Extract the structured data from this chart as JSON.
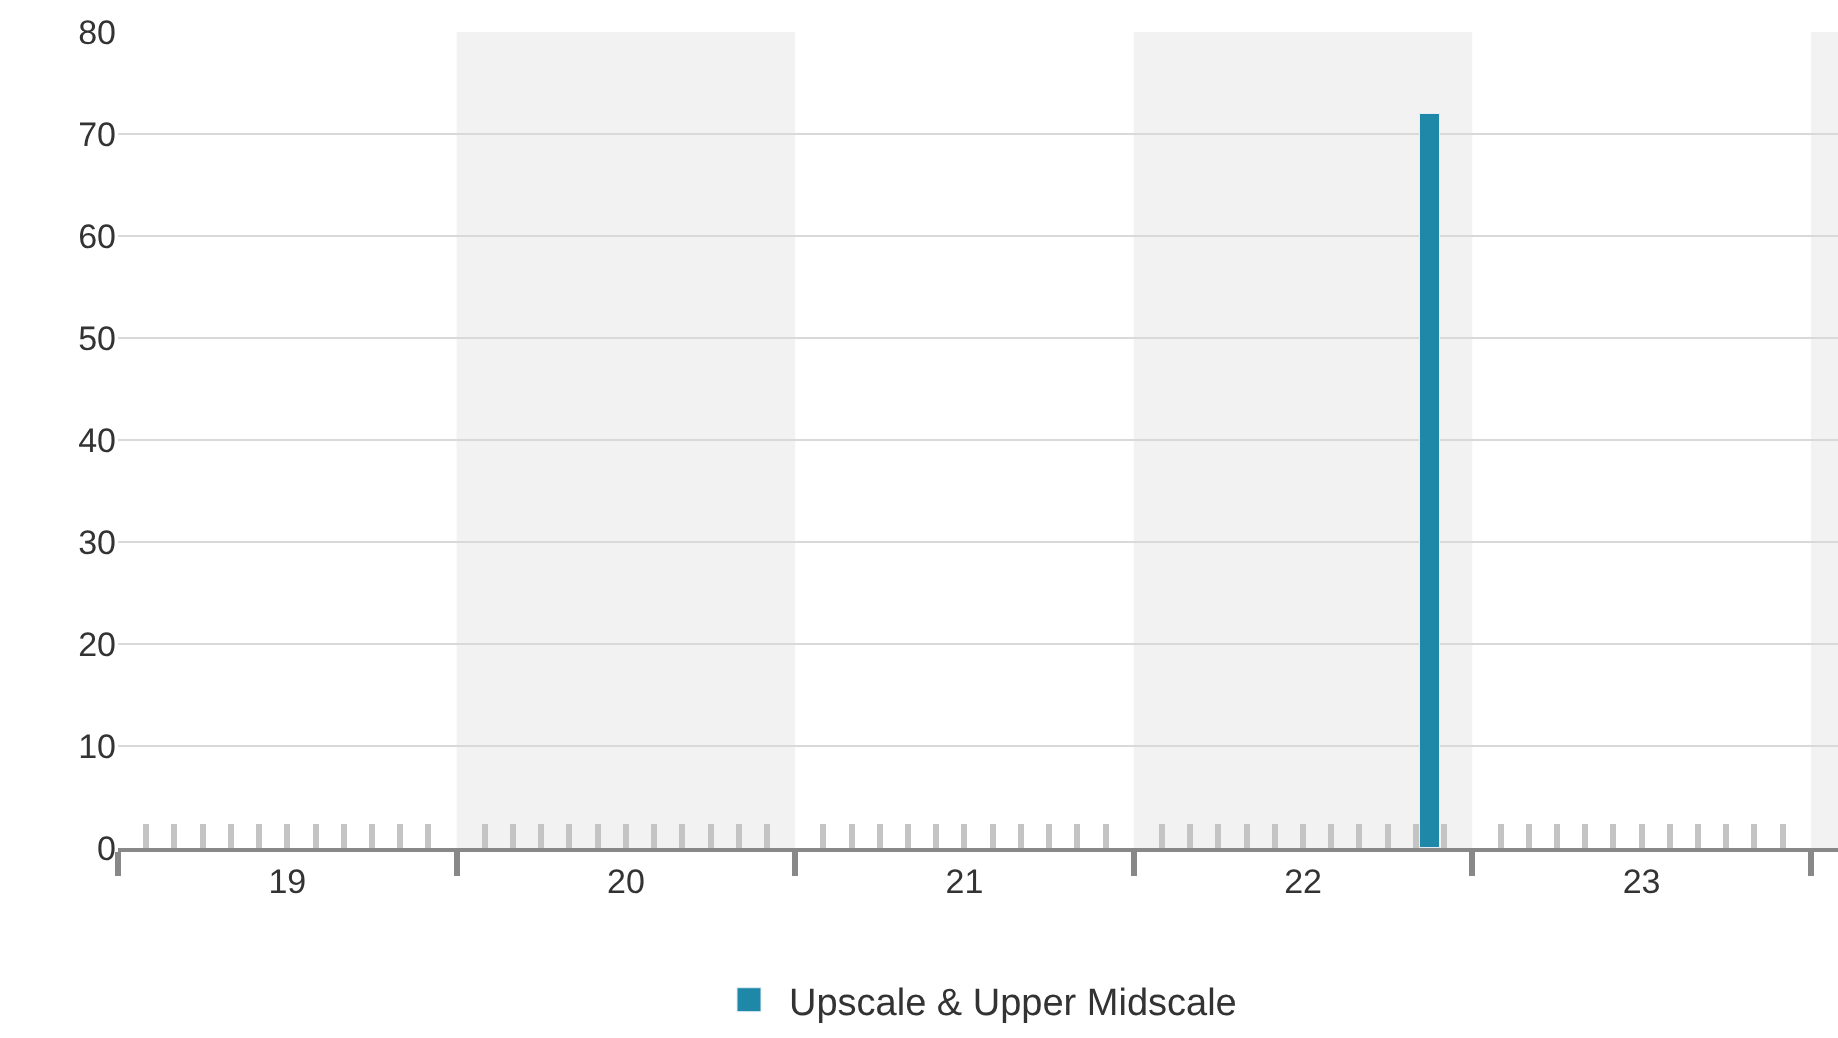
{
  "chart_data": {
    "type": "bar",
    "x": [
      22.375
    ],
    "series": [
      {
        "name": "Upscale & Upper Midscale",
        "color": "#1f87a8",
        "values": [
          72
        ]
      }
    ],
    "xlim": [
      18.5,
      23.58
    ],
    "xticks": [
      {
        "value": 18.5,
        "label": null
      },
      {
        "value": 19,
        "label": "19"
      },
      {
        "value": 19.5,
        "label": null
      },
      {
        "value": 20,
        "label": "20"
      },
      {
        "value": 20.5,
        "label": null
      },
      {
        "value": 21,
        "label": "21"
      },
      {
        "value": 21.5,
        "label": null
      },
      {
        "value": 22,
        "label": "22"
      },
      {
        "value": 22.5,
        "label": null
      },
      {
        "value": 23,
        "label": "23"
      },
      {
        "value": 23.5,
        "label": null
      }
    ],
    "ylim": [
      0,
      80
    ],
    "yticks": [
      0,
      10,
      20,
      30,
      40,
      50,
      60,
      70,
      80
    ],
    "bands": [
      {
        "axis": "x",
        "from": 19.5,
        "to": 20.5,
        "color": "#f2f2f2"
      },
      {
        "axis": "x",
        "from": 21.5,
        "to": 22.5,
        "color": "#f2f2f2"
      },
      {
        "axis": "x",
        "from": 23.5,
        "to": 23.58,
        "color": "#f2f2f2"
      }
    ],
    "grid": "y",
    "legend": "bottom"
  }
}
